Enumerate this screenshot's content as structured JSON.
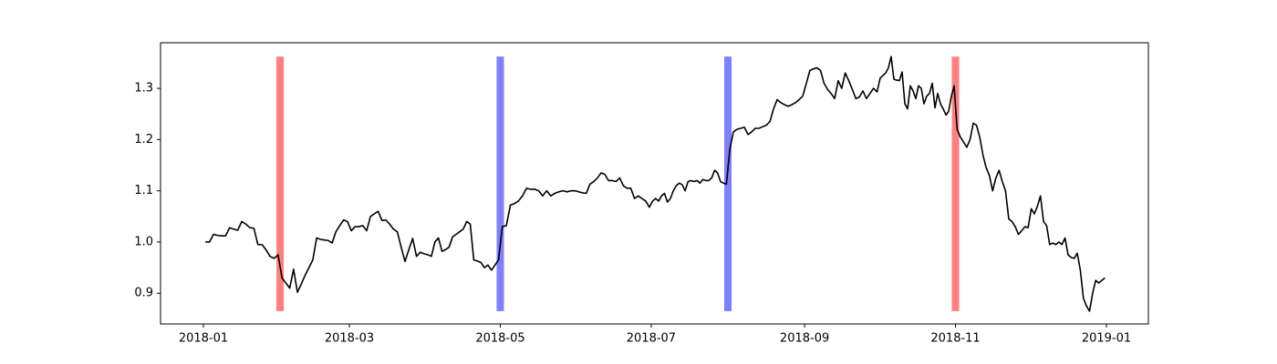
{
  "chart_data": {
    "type": "line",
    "color": "#000000",
    "months": [
      {
        "month": "2018-01",
        "values": [
          1.0,
          1.0,
          1.015,
          1.013,
          1.012,
          1.012,
          1.028,
          1.025,
          1.023,
          1.04,
          1.035,
          1.028,
          1.027,
          0.995,
          0.995,
          0.985,
          0.972,
          0.968,
          0.975
        ]
      },
      {
        "month": "2018-02",
        "values": [
          0.93,
          0.92,
          0.91,
          0.947,
          0.902,
          0.918,
          0.935,
          0.95,
          0.965,
          1.008,
          1.005,
          1.004,
          1.003,
          0.998,
          1.02,
          1.032,
          1.043,
          1.04
        ]
      },
      {
        "month": "2018-03",
        "values": [
          1.022,
          1.03,
          1.03,
          1.032,
          1.022,
          1.05,
          1.055,
          1.06,
          1.042,
          1.043,
          1.035,
          1.025,
          1.02,
          0.99,
          0.962,
          0.985,
          1.007,
          0.972,
          0.98,
          0.977
        ]
      },
      {
        "month": "2018-04",
        "values": [
          0.975,
          0.972,
          1.0,
          1.008,
          0.982,
          0.985,
          0.99,
          1.01,
          1.015,
          1.02,
          1.025,
          1.04,
          1.035,
          0.965,
          0.963,
          0.96,
          0.95,
          0.955,
          0.945,
          0.955,
          0.965
        ]
      },
      {
        "month": "2018-05",
        "values": [
          1.03,
          1.032,
          1.072,
          1.075,
          1.08,
          1.09,
          1.105,
          1.103,
          1.103,
          1.1,
          1.09,
          1.1,
          1.09,
          1.095,
          1.098,
          1.1,
          1.098,
          1.1,
          1.1
        ]
      },
      {
        "month": "2018-06",
        "values": [
          1.098,
          1.096,
          1.095,
          1.113,
          1.118,
          1.125,
          1.135,
          1.132,
          1.12,
          1.12,
          1.118,
          1.125,
          1.11,
          1.105,
          1.105,
          1.085,
          1.09,
          1.085,
          1.08,
          1.068
        ]
      },
      {
        "month": "2018-07",
        "values": [
          1.08,
          1.085,
          1.08,
          1.09,
          1.095,
          1.078,
          1.085,
          1.1,
          1.11,
          1.115,
          1.112,
          1.1,
          1.118,
          1.12,
          1.118,
          1.12,
          1.115,
          1.122,
          1.12,
          1.12,
          1.125,
          1.14,
          1.135,
          1.118,
          1.115,
          1.113
        ]
      },
      {
        "month": "2018-08",
        "values": [
          1.18,
          1.215,
          1.22,
          1.222,
          1.224,
          1.21,
          1.215,
          1.222,
          1.222,
          1.225,
          1.228,
          1.235,
          1.26,
          1.278,
          1.272,
          1.268,
          1.265,
          1.268,
          1.272,
          1.278,
          1.285
        ]
      },
      {
        "month": "2018-09",
        "values": [
          1.31,
          1.335,
          1.338,
          1.34,
          1.335,
          1.31,
          1.298,
          1.29,
          1.28,
          1.315,
          1.3,
          1.33,
          1.315,
          1.298,
          1.28,
          1.283,
          1.295,
          1.28,
          1.29,
          1.3,
          1.293
        ]
      },
      {
        "month": "2018-10",
        "values": [
          1.32,
          1.325,
          1.33,
          1.34,
          1.362,
          1.318,
          1.316,
          1.315,
          1.332,
          1.27,
          1.26,
          1.305,
          1.295,
          1.28,
          1.305,
          1.3,
          1.27,
          1.285,
          1.29,
          1.31,
          1.262,
          1.29,
          1.27,
          1.26,
          1.248,
          1.255,
          1.285,
          1.305
        ]
      },
      {
        "month": "2018-11",
        "values": [
          1.22,
          1.205,
          1.195,
          1.185,
          1.2,
          1.232,
          1.228,
          1.205,
          1.17,
          1.145,
          1.13,
          1.1,
          1.125,
          1.14,
          1.118,
          1.1,
          1.045,
          1.04,
          1.03,
          1.015,
          1.022,
          1.03,
          1.028
        ]
      },
      {
        "month": "2018-12",
        "values": [
          1.065,
          1.055,
          1.07,
          1.09,
          1.04,
          1.032,
          0.995,
          0.998,
          0.995,
          1.0,
          0.995,
          1.008,
          0.975,
          0.97,
          0.968,
          0.978,
          0.945,
          0.89,
          0.875,
          0.865,
          0.9,
          0.925,
          0.92,
          0.925,
          0.93
        ]
      }
    ],
    "bands": [
      {
        "x": "2018-02",
        "color": "#ff7f7f"
      },
      {
        "x": "2018-05",
        "color": "#7f7fff"
      },
      {
        "x": "2018-08",
        "color": "#7f7fff"
      },
      {
        "x": "2018-11",
        "color": "#ff7f7f"
      }
    ],
    "band_range": [
      0.865,
      1.362
    ],
    "ylim": [
      0.84,
      1.389
    ],
    "yticks": [
      0.9,
      {
        "value": 1.0,
        "label": "1.0"
      },
      1.1,
      1.2,
      1.3
    ],
    "xticks": [
      "2018-01",
      "2018-03",
      "2018-05",
      "2018-07",
      "2018-09",
      "2018-11",
      "2019-01"
    ]
  }
}
